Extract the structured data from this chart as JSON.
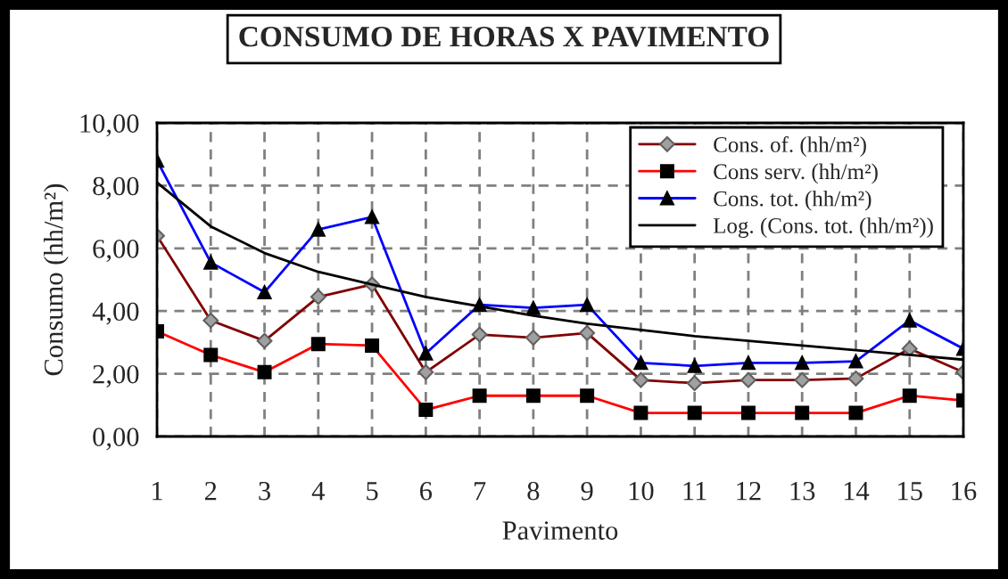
{
  "chart_data": {
    "type": "line",
    "title": "CONSUMO DE HORAS X PAVIMENTO",
    "xlabel": "Pavimento",
    "ylabel": "Consumo (hh/m²)",
    "categories": [
      "1",
      "2",
      "3",
      "4",
      "5",
      "6",
      "7",
      "8",
      "9",
      "10",
      "11",
      "12",
      "13",
      "14",
      "15",
      "16"
    ],
    "series": [
      {
        "name": "Cons. of. (hh/m²)",
        "color": "#800000",
        "marker": "diamond",
        "values": [
          6.4,
          3.7,
          3.05,
          4.45,
          4.85,
          2.05,
          3.25,
          3.15,
          3.3,
          1.8,
          1.7,
          1.8,
          1.8,
          1.85,
          2.8,
          2.05
        ]
      },
      {
        "name": "Cons serv. (hh/m²)",
        "color": "#ff0000",
        "marker": "square",
        "values": [
          3.35,
          2.6,
          2.05,
          2.95,
          2.9,
          0.85,
          1.3,
          1.3,
          1.3,
          0.75,
          0.75,
          0.75,
          0.75,
          0.75,
          1.3,
          1.15
        ]
      },
      {
        "name": "Cons. tot. (hh/m²)",
        "color": "#0000ff",
        "marker": "triangle",
        "values": [
          8.8,
          5.55,
          4.6,
          6.6,
          7.0,
          2.65,
          4.2,
          4.1,
          4.2,
          2.35,
          2.25,
          2.35,
          2.35,
          2.4,
          3.7,
          2.8
        ]
      },
      {
        "name": "Log. (Cons. tot. (hh/m²))",
        "color": "#000000",
        "marker": "none",
        "values": [
          8.1,
          6.7,
          5.85,
          5.25,
          4.85,
          4.45,
          4.15,
          3.85,
          3.6,
          3.4,
          3.2,
          3.05,
          2.9,
          2.75,
          2.6,
          2.45
        ]
      }
    ],
    "ylim": [
      0,
      10
    ],
    "yticks": [
      {
        "value": 0,
        "label": "0,00"
      },
      {
        "value": 2,
        "label": "2,00"
      },
      {
        "value": 4,
        "label": "4,00"
      },
      {
        "value": 6,
        "label": "6,00"
      },
      {
        "value": 8,
        "label": "8,00"
      },
      {
        "value": 10,
        "label": "10,00"
      }
    ],
    "grid": true,
    "line_style": "solid",
    "legend": "top right"
  }
}
